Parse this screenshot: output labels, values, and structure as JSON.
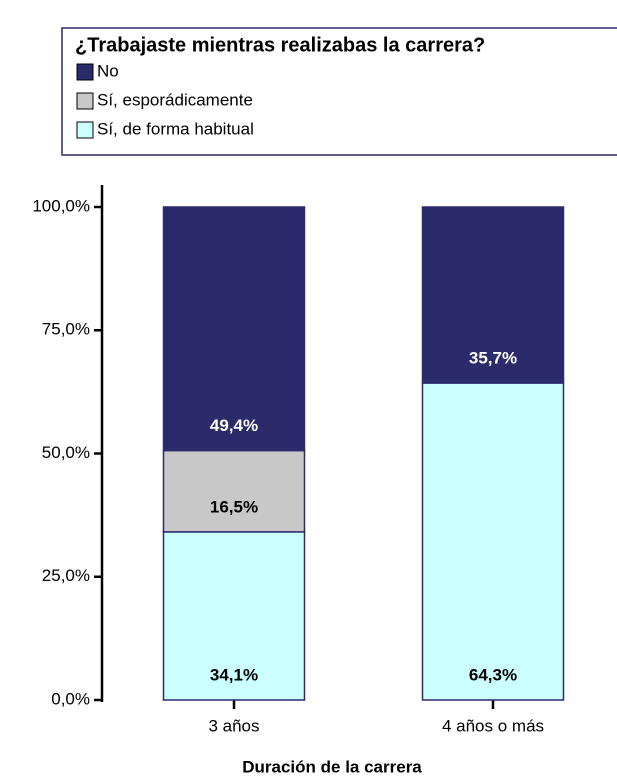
{
  "chart_data": {
    "type": "stacked_bar",
    "legend_title": "¿Trabajaste mientras realizabas la carrera?",
    "x_label": "Duración de la carrera",
    "categories": [
      "3 años",
      "4 años o más"
    ],
    "series": [
      {
        "name": "Sí, de forma habitual",
        "color": "#ccffff",
        "label_color": "#000000",
        "values": [
          34.1,
          64.3
        ],
        "value_labels": [
          "34,1%",
          "64,3%"
        ]
      },
      {
        "name": "Sí, esporádicamente",
        "color": "#c8c8c8",
        "label_color": "#000000",
        "values": [
          16.5,
          null
        ],
        "value_labels": [
          "16,5%",
          null
        ]
      },
      {
        "name": "No",
        "color": "#2b2b6c",
        "label_color": "#ffffff",
        "values": [
          49.4,
          35.7
        ],
        "value_labels": [
          "49,4%",
          "35,7%"
        ]
      }
    ],
    "ylim": [
      0,
      100
    ],
    "yticks": [
      {
        "value": 0,
        "label": "0,0%"
      },
      {
        "value": 25,
        "label": "25,0%"
      },
      {
        "value": 50,
        "label": "50,0%"
      },
      {
        "value": 75,
        "label": "75,0%"
      },
      {
        "value": 100,
        "label": "100,0%"
      }
    ]
  }
}
